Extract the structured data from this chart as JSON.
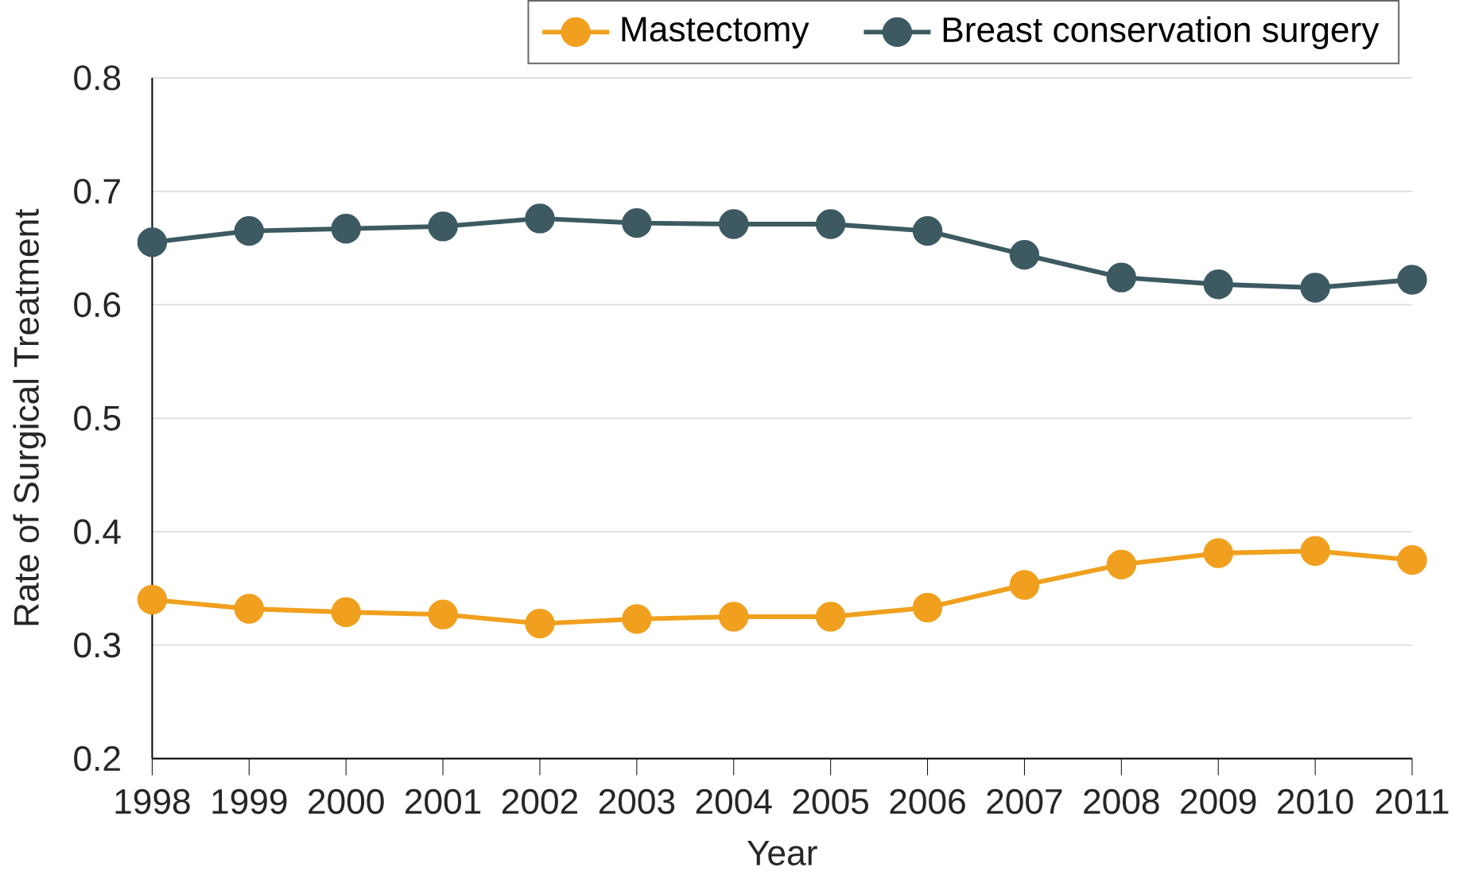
{
  "chart_data": {
    "type": "line",
    "xlabel": "Year",
    "ylabel": "Rate of Surgical Treatment",
    "categories": [
      "1998",
      "1999",
      "2000",
      "2001",
      "2002",
      "2003",
      "2004",
      "2005",
      "2006",
      "2007",
      "2008",
      "2009",
      "2010",
      "2011"
    ],
    "series": [
      {
        "name": "Mastectomy",
        "color": "#f0a01e",
        "values": [
          0.34,
          0.332,
          0.329,
          0.327,
          0.319,
          0.323,
          0.325,
          0.325,
          0.333,
          0.353,
          0.371,
          0.381,
          0.383,
          0.375
        ]
      },
      {
        "name": "Breast conservation surgery",
        "color": "#3d5a62",
        "values": [
          0.655,
          0.665,
          0.667,
          0.669,
          0.676,
          0.672,
          0.671,
          0.671,
          0.665,
          0.644,
          0.624,
          0.618,
          0.615,
          0.622
        ]
      }
    ],
    "ylim": [
      0.2,
      0.8
    ],
    "yticks": [
      0.2,
      0.3,
      0.4,
      0.5,
      0.6,
      0.7,
      0.8
    ],
    "grid": "y",
    "legend": "top right",
    "marker": "circle",
    "line_style": "solid"
  }
}
